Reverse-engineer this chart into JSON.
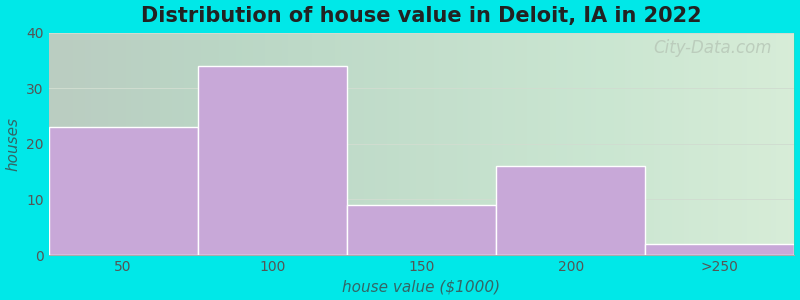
{
  "title": "Distribution of house value in Deloit, IA in 2022",
  "xlabel": "house value ($1000)",
  "ylabel": "houses",
  "bar_labels": [
    "50",
    "100",
    "150",
    "200",
    ">250"
  ],
  "bar_values": [
    23,
    34,
    9,
    16,
    2
  ],
  "bar_color": "#c8a8d8",
  "bar_edge_color": "#ffffff",
  "ylim": [
    0,
    40
  ],
  "yticks": [
    0,
    10,
    20,
    30,
    40
  ],
  "background_outer": "#00e8e8",
  "background_inner_left": "#e8f5e8",
  "background_inner_right": "#f8faf8",
  "title_fontsize": 15,
  "axis_label_fontsize": 11,
  "tick_fontsize": 10,
  "watermark_text": "City-Data.com",
  "watermark_color": "#b8c8b8",
  "watermark_fontsize": 12,
  "bar_edge_linewidth": 1.0
}
